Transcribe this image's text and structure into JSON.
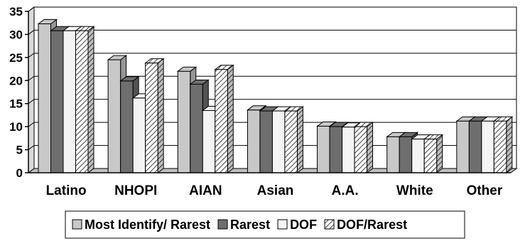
{
  "chart_data": {
    "type": "bar",
    "categories": [
      "Latino",
      "NHOPI",
      "AIAN",
      "Asian",
      "A.A.",
      "White",
      "Other"
    ],
    "series": [
      {
        "name": "Most Identify/ Rarest",
        "values": [
          32.3,
          24.5,
          22.0,
          13.6,
          10.1,
          7.8,
          11.2
        ],
        "color": "#c8c8c8"
      },
      {
        "name": "Rarest",
        "values": [
          30.8,
          19.9,
          19.2,
          13.4,
          10.0,
          7.8,
          11.2
        ],
        "color": "#6e6e6e"
      },
      {
        "name": "DOF",
        "values": [
          30.8,
          16.2,
          13.5,
          13.4,
          9.9,
          7.3,
          11.2
        ],
        "color": "#f4f4f4"
      },
      {
        "name": "DOF/Rarest",
        "values": [
          30.8,
          23.8,
          22.4,
          13.4,
          10.0,
          7.3,
          11.2
        ],
        "color": "hatched"
      }
    ],
    "ylim": [
      0,
      35
    ],
    "yticks": [
      0,
      5,
      10,
      15,
      20,
      25,
      30,
      35
    ],
    "grid": true,
    "legend_position": "bottom",
    "title": "",
    "xlabel": "",
    "ylabel": ""
  }
}
